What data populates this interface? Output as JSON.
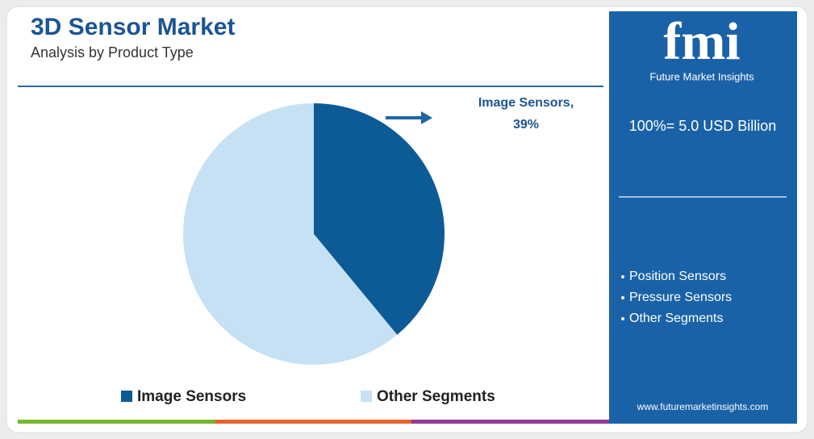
{
  "chart_data": {
    "type": "pie",
    "title": "3D Sensor Market",
    "subtitle": "Analysis by Product Type",
    "categories": [
      "Image Sensors",
      "Other Segments"
    ],
    "values": [
      39,
      61
    ],
    "colors": [
      "#0d5b96",
      "#c6e1f4"
    ],
    "callout": {
      "text": "Image Sensors,",
      "value_label": "39%"
    }
  },
  "sidebar": {
    "logo": "fmi",
    "brand": "Future Market Insights",
    "total": "100%= 5.0 USD Billion",
    "bullets": [
      "Position Sensors",
      "Pressure Sensors",
      "Other Segments"
    ],
    "website": "www.futuremarketinsights.com"
  }
}
